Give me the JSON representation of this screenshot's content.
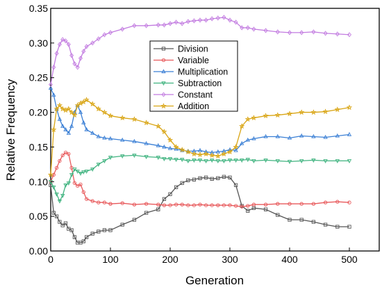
{
  "chart_data": {
    "type": "line",
    "title": "",
    "xlabel": "Generation",
    "ylabel": "Relative Frequency",
    "xlim": [
      0,
      550
    ],
    "ylim": [
      0.0,
      0.35
    ],
    "xticks": [
      0,
      100,
      200,
      300,
      400,
      500
    ],
    "xtick_labels": [
      "0",
      "100",
      "200",
      "300",
      "400",
      "500"
    ],
    "yticks": [
      0.0,
      0.05,
      0.1,
      0.15,
      0.2,
      0.25,
      0.3,
      0.35
    ],
    "ytick_labels": [
      "0.00",
      "0.05",
      "0.10",
      "0.15",
      "0.20",
      "0.25",
      "0.30",
      "0.35"
    ],
    "grid": false,
    "legend_position": "top-center",
    "x": [
      0,
      5,
      10,
      15,
      20,
      25,
      30,
      35,
      40,
      45,
      50,
      55,
      60,
      70,
      80,
      90,
      100,
      120,
      140,
      160,
      180,
      190,
      200,
      210,
      220,
      230,
      240,
      250,
      260,
      270,
      280,
      290,
      300,
      310,
      320,
      330,
      340,
      360,
      380,
      400,
      420,
      440,
      460,
      480,
      500
    ],
    "series": [
      {
        "name": "Division",
        "color": "#555555",
        "marker": "square",
        "values": [
          0.095,
          0.055,
          0.05,
          0.042,
          0.037,
          0.04,
          0.032,
          0.03,
          0.02,
          0.012,
          0.012,
          0.014,
          0.02,
          0.025,
          0.028,
          0.03,
          0.03,
          0.038,
          0.045,
          0.055,
          0.06,
          0.075,
          0.082,
          0.092,
          0.098,
          0.102,
          0.103,
          0.105,
          0.106,
          0.104,
          0.105,
          0.107,
          0.106,
          0.095,
          0.065,
          0.058,
          0.062,
          0.06,
          0.052,
          0.045,
          0.045,
          0.042,
          0.038,
          0.035,
          0.035
        ]
      },
      {
        "name": "Variable",
        "color": "#e8595b",
        "marker": "circle",
        "values": [
          0.1,
          0.11,
          0.12,
          0.13,
          0.138,
          0.142,
          0.14,
          0.12,
          0.098,
          0.094,
          0.096,
          0.085,
          0.075,
          0.072,
          0.07,
          0.07,
          0.068,
          0.069,
          0.067,
          0.068,
          0.067,
          0.066,
          0.066,
          0.067,
          0.067,
          0.066,
          0.066,
          0.067,
          0.066,
          0.066,
          0.066,
          0.066,
          0.066,
          0.065,
          0.064,
          0.065,
          0.067,
          0.067,
          0.068,
          0.068,
          0.068,
          0.068,
          0.07,
          0.071,
          0.07
        ]
      },
      {
        "name": "Multiplication",
        "color": "#3a7fd5",
        "marker": "triangle",
        "values": [
          0.235,
          0.225,
          0.205,
          0.19,
          0.18,
          0.175,
          0.17,
          0.18,
          0.2,
          0.21,
          0.2,
          0.185,
          0.175,
          0.17,
          0.165,
          0.163,
          0.162,
          0.16,
          0.158,
          0.155,
          0.152,
          0.15,
          0.148,
          0.147,
          0.145,
          0.144,
          0.144,
          0.145,
          0.143,
          0.142,
          0.143,
          0.144,
          0.146,
          0.145,
          0.155,
          0.16,
          0.162,
          0.165,
          0.165,
          0.163,
          0.166,
          0.165,
          0.164,
          0.166,
          0.168
        ]
      },
      {
        "name": "Subtraction",
        "color": "#3fb37f",
        "marker": "triangle-down",
        "values": [
          0.1,
          0.092,
          0.082,
          0.072,
          0.08,
          0.095,
          0.098,
          0.11,
          0.118,
          0.115,
          0.112,
          0.114,
          0.115,
          0.118,
          0.125,
          0.13,
          0.135,
          0.137,
          0.138,
          0.136,
          0.135,
          0.133,
          0.133,
          0.132,
          0.132,
          0.13,
          0.131,
          0.131,
          0.13,
          0.131,
          0.13,
          0.13,
          0.131,
          0.131,
          0.131,
          0.132,
          0.13,
          0.131,
          0.13,
          0.129,
          0.13,
          0.131,
          0.13,
          0.13,
          0.13
        ]
      },
      {
        "name": "Constant",
        "color": "#c27be0",
        "marker": "diamond",
        "values": [
          0.24,
          0.265,
          0.285,
          0.298,
          0.305,
          0.303,
          0.298,
          0.282,
          0.27,
          0.265,
          0.278,
          0.288,
          0.295,
          0.3,
          0.306,
          0.312,
          0.315,
          0.32,
          0.325,
          0.325,
          0.326,
          0.326,
          0.328,
          0.33,
          0.328,
          0.331,
          0.332,
          0.333,
          0.333,
          0.335,
          0.336,
          0.337,
          0.333,
          0.33,
          0.322,
          0.322,
          0.32,
          0.318,
          0.316,
          0.315,
          0.315,
          0.316,
          0.314,
          0.313,
          0.312
        ]
      },
      {
        "name": "Addition",
        "color": "#d9a514",
        "marker": "star",
        "values": [
          0.11,
          0.175,
          0.205,
          0.21,
          0.205,
          0.203,
          0.205,
          0.2,
          0.196,
          0.21,
          0.213,
          0.215,
          0.218,
          0.212,
          0.205,
          0.2,
          0.195,
          0.192,
          0.19,
          0.185,
          0.18,
          0.172,
          0.16,
          0.15,
          0.146,
          0.143,
          0.14,
          0.139,
          0.14,
          0.138,
          0.137,
          0.14,
          0.143,
          0.15,
          0.18,
          0.19,
          0.192,
          0.195,
          0.196,
          0.198,
          0.2,
          0.2,
          0.201,
          0.204,
          0.207
        ]
      }
    ]
  }
}
